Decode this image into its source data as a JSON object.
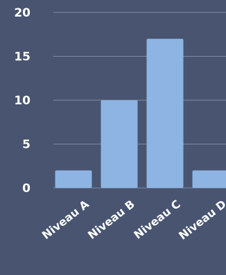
{
  "colors": {
    "background": "#485470",
    "bar": "#8db4e3",
    "grid": "#7f8aa3",
    "text": "#ffffff"
  },
  "chart_data": {
    "type": "bar",
    "categories": [
      "Niveau A",
      "Niveau B",
      "Niveau C",
      "Niveau D"
    ],
    "values": [
      2,
      10,
      17,
      2
    ],
    "title": "",
    "xlabel": "",
    "ylabel": "",
    "ylim": [
      0,
      20
    ],
    "yticks": [
      0,
      5,
      10,
      15,
      20
    ],
    "ytick_labels": [
      "0",
      "5",
      "10",
      "15",
      "20"
    ],
    "grid": true,
    "legend": "none"
  }
}
